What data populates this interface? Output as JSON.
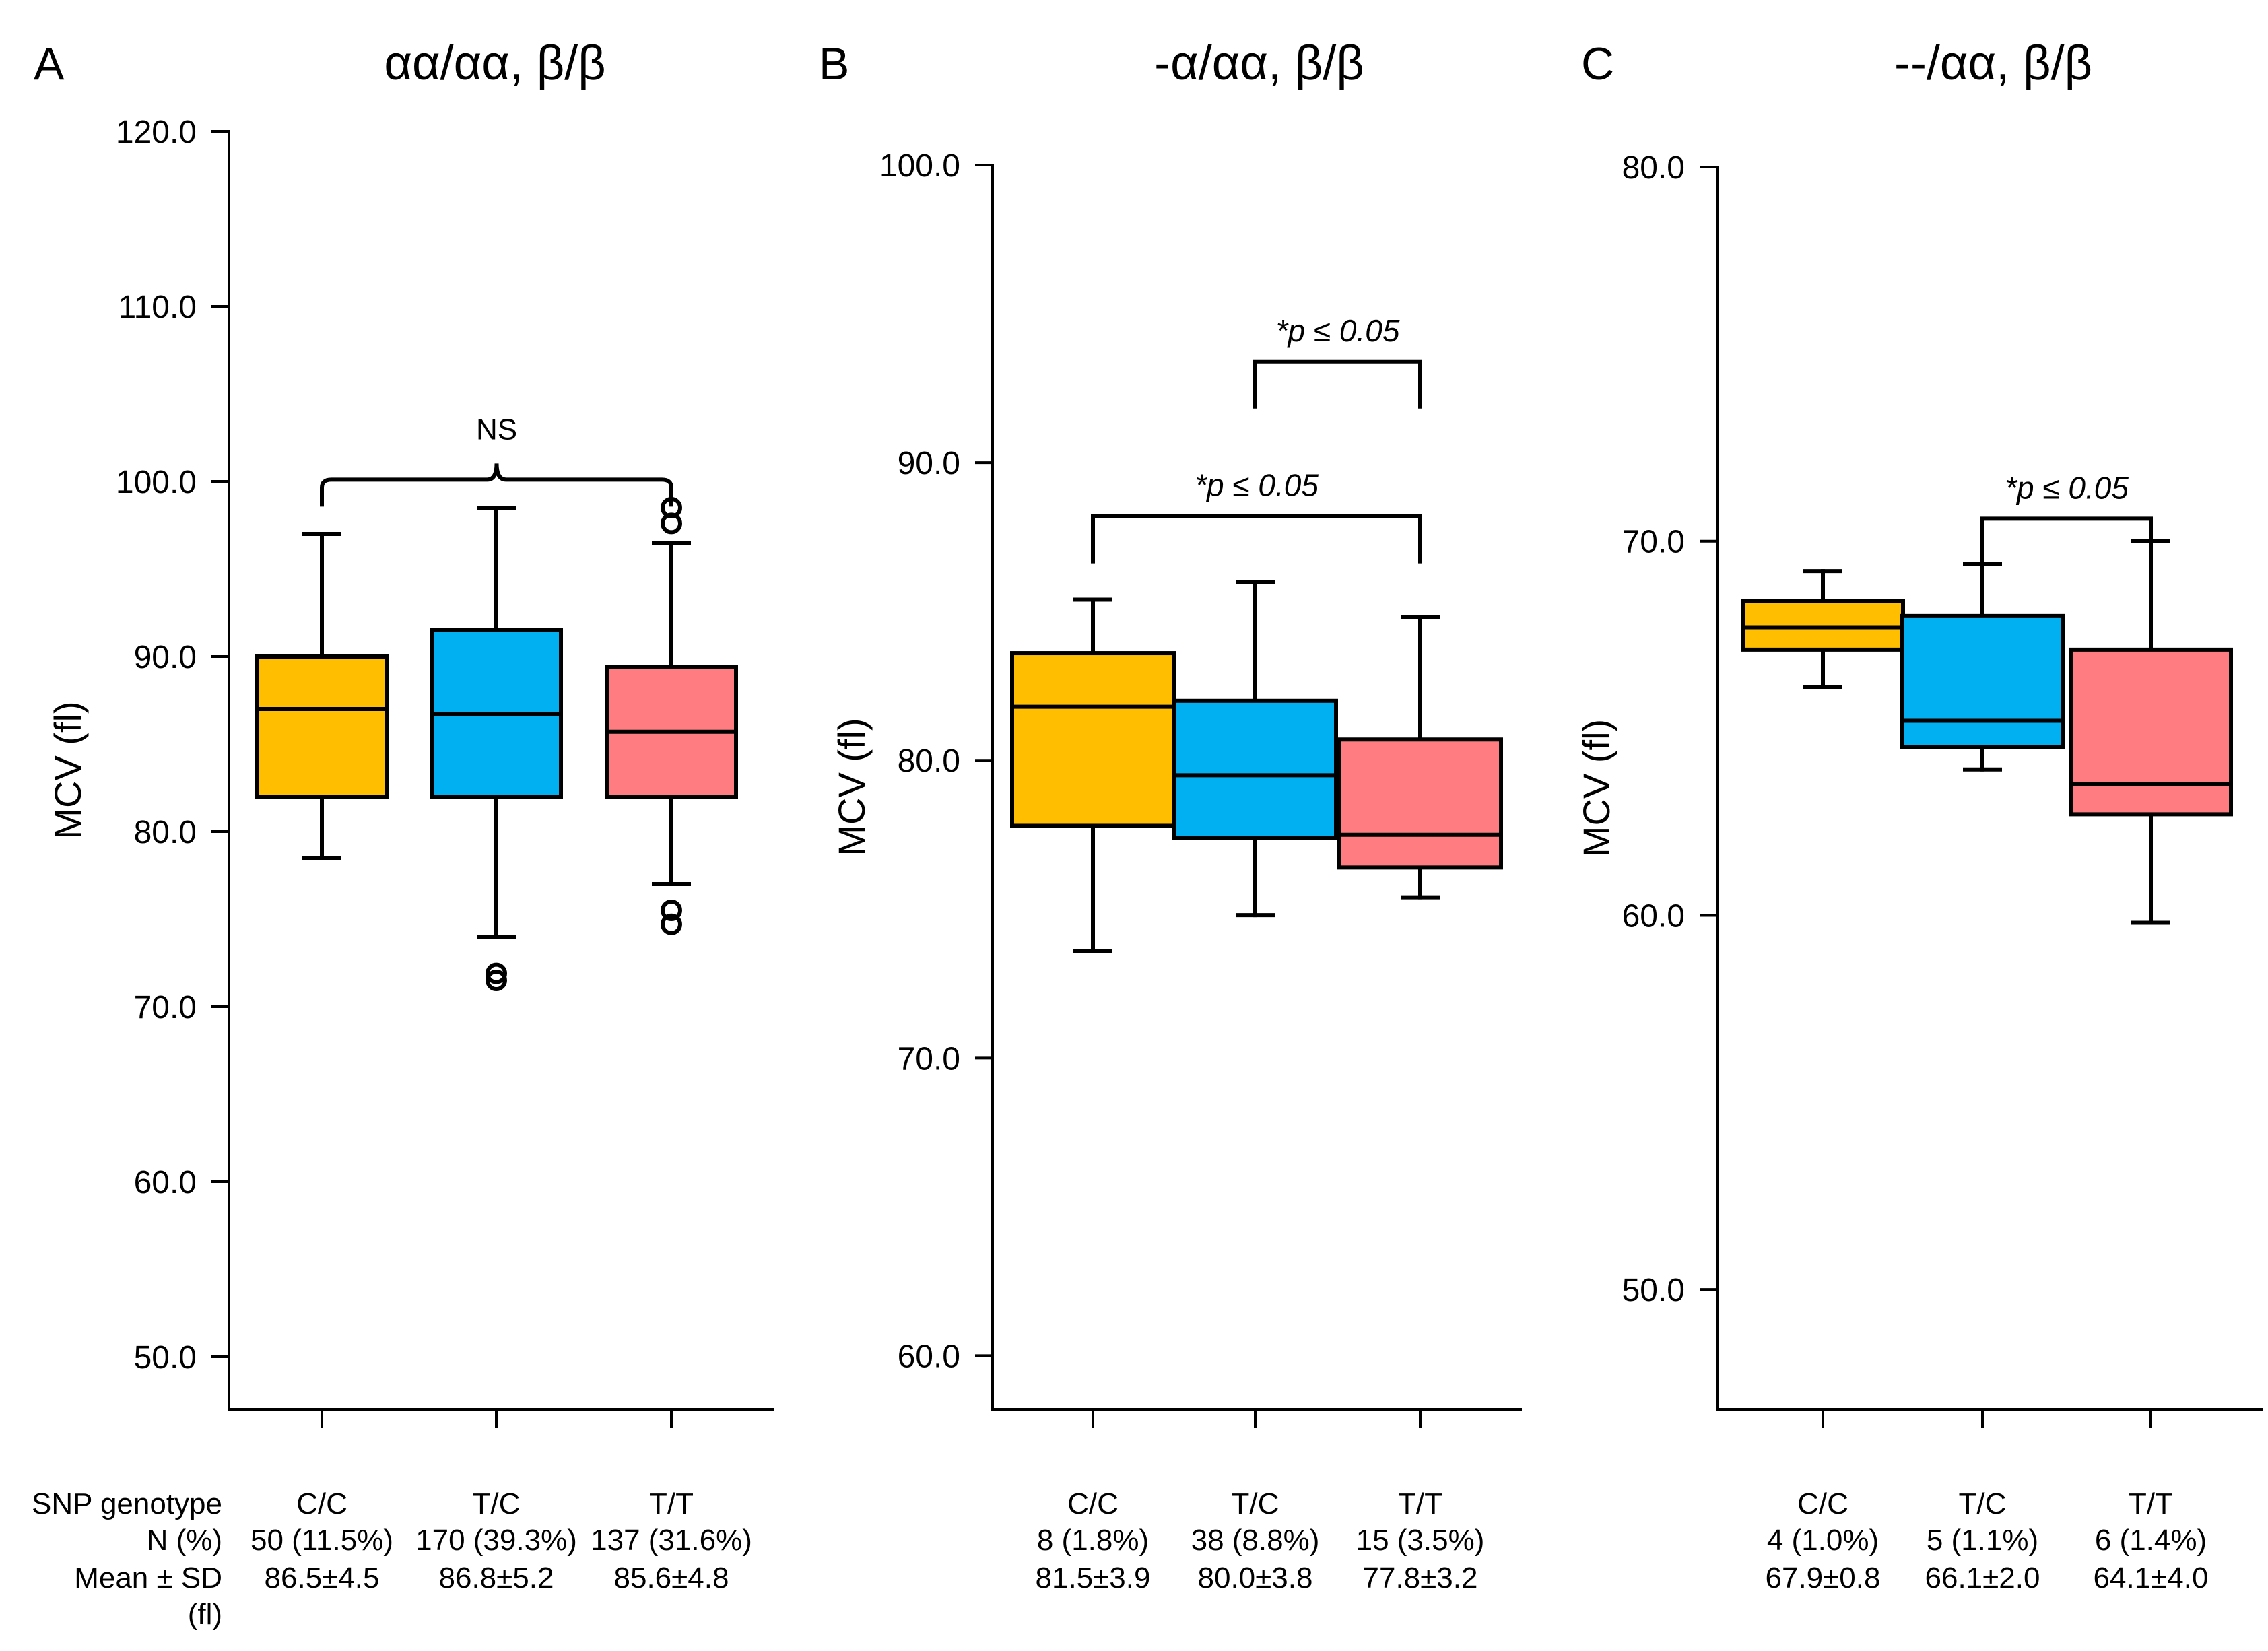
{
  "row_labels": [
    "SNP genotype",
    "N (%)",
    "Mean ± SD",
    "(fl)"
  ],
  "colors": {
    "C/C": "#FFBF00",
    "T/C": "#00B0F0",
    "T/T": "#FF7C80",
    "line": "#000000"
  },
  "chart_data": [
    {
      "type": "box",
      "panel": "A",
      "title": "αα/αα, β/β",
      "ylabel": "MCV (fl)",
      "ylim": [
        47,
        120
      ],
      "yticks": [
        50,
        60,
        70,
        80,
        90,
        100,
        110,
        120
      ],
      "ytick_labels": [
        "50.0",
        "60.0",
        "70.0",
        "80.0",
        "90.0",
        "100.0",
        "110.0",
        "120.0"
      ],
      "categories": [
        "C/C",
        "T/C",
        "T/T"
      ],
      "counts": [
        "50 (11.5%)",
        "170 (39.3%)",
        "137 (31.6%)"
      ],
      "means": [
        "86.5±4.5",
        "86.8±5.2",
        "85.6±4.8"
      ],
      "boxes": [
        {
          "whisker_low": 78.5,
          "q1": 82.0,
          "median": 87.0,
          "q3": 90.0,
          "whisker_high": 97.0,
          "outliers": []
        },
        {
          "whisker_low": 74.0,
          "q1": 82.0,
          "median": 86.7,
          "q3": 91.5,
          "whisker_high": 98.5,
          "outliers": [
            71.9,
            71.5
          ]
        },
        {
          "whisker_low": 77.0,
          "q1": 82.0,
          "median": 85.7,
          "q3": 89.4,
          "whisker_high": 96.5,
          "outliers": [
            98.5,
            97.6,
            75.5,
            74.7
          ]
        }
      ],
      "brackets": [
        {
          "from": 0,
          "to": 2,
          "y": 100.1,
          "label": "NS",
          "style": "brace"
        }
      ]
    },
    {
      "type": "box",
      "panel": "B",
      "title": "-α/αα, β/β",
      "ylabel": "MCV (fl)",
      "ylim": [
        58.2,
        100
      ],
      "yticks": [
        60,
        70,
        80,
        90,
        100
      ],
      "ytick_labels": [
        "60.0",
        "70.0",
        "80.0",
        "90.0",
        "100.0"
      ],
      "categories": [
        "C/C",
        "T/C",
        "T/T"
      ],
      "counts": [
        "8 (1.8%)",
        "38 (8.8%)",
        "15 (3.5%)"
      ],
      "means": [
        "81.5±3.9",
        "80.0±3.8",
        "77.8±3.2"
      ],
      "boxes": [
        {
          "whisker_low": 73.6,
          "q1": 77.8,
          "median": 81.8,
          "q3": 83.6,
          "whisker_high": 85.4,
          "outliers": []
        },
        {
          "whisker_low": 74.8,
          "q1": 77.4,
          "median": 79.5,
          "q3": 82.0,
          "whisker_high": 86.0,
          "outliers": []
        },
        {
          "whisker_low": 75.4,
          "q1": 76.4,
          "median": 77.5,
          "q3": 80.7,
          "whisker_high": 84.8,
          "outliers": []
        }
      ],
      "brackets": [
        {
          "from": 1,
          "to": 2,
          "y": 93.4,
          "label": "*p ≤ 0.05",
          "style": "bracket"
        },
        {
          "from": 0,
          "to": 2,
          "y": 88.2,
          "label": "*p ≤ 0.05",
          "style": "bracket"
        }
      ]
    },
    {
      "type": "box",
      "panel": "C",
      "title": "--/αα, β/β",
      "ylabel": "MCV (fl)",
      "ylim": [
        46.8,
        80
      ],
      "yticks": [
        50,
        60,
        70,
        80
      ],
      "ytick_labels": [
        "50.0",
        "60.0",
        "70.0",
        "80.0"
      ],
      "categories": [
        "C/C",
        "T/C",
        "T/T"
      ],
      "counts": [
        "4 (1.0%)",
        "5 (1.1%)",
        "6 (1.4%)"
      ],
      "means": [
        "67.9±0.8",
        "66.1±2.0",
        "64.1±4.0"
      ],
      "boxes": [
        {
          "whisker_low": 66.1,
          "q1": 67.1,
          "median": 67.7,
          "q3": 68.4,
          "whisker_high": 69.2,
          "outliers": []
        },
        {
          "whisker_low": 63.9,
          "q1": 64.5,
          "median": 65.2,
          "q3": 68.0,
          "whisker_high": 69.4,
          "outliers": []
        },
        {
          "whisker_low": 59.8,
          "q1": 62.7,
          "median": 63.5,
          "q3": 67.1,
          "whisker_high": 70.0,
          "outliers": []
        }
      ],
      "brackets": [
        {
          "from": 1,
          "to": 2,
          "y": 70.6,
          "label": "*p ≤ 0.05",
          "style": "bracket"
        }
      ]
    }
  ]
}
